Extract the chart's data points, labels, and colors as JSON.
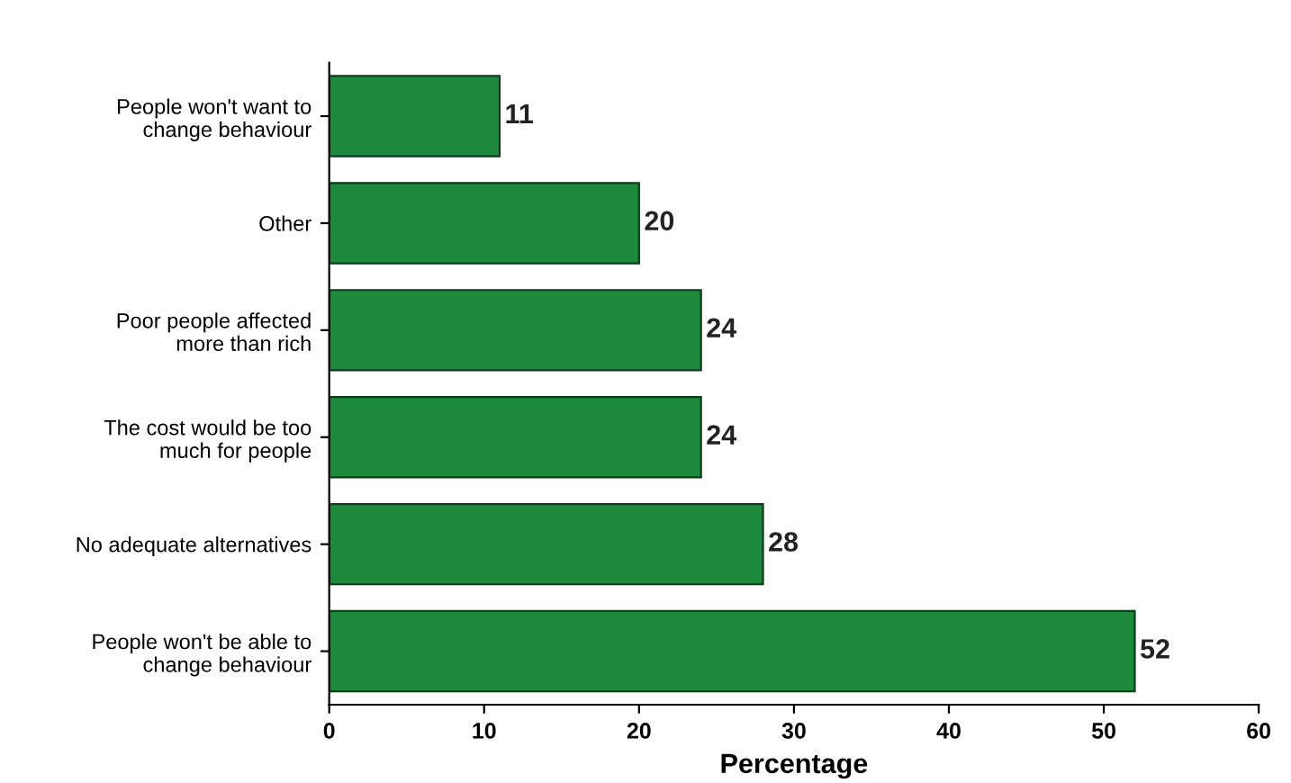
{
  "chart_data": {
    "type": "bar",
    "orientation": "horizontal",
    "categories": [
      "People won't want to\nchange behaviour",
      "Other",
      "Poor people affected\nmore than rich",
      "The cost would be too\nmuch for people",
      "No adequate alternatives",
      "People won't be able to\nchange behaviour"
    ],
    "values": [
      11,
      20,
      24,
      24,
      28,
      52
    ],
    "color": "#1e8a3e",
    "data_labels": true,
    "xlabel": "Percentage",
    "xlim": [
      0,
      60
    ],
    "xticks": [
      0,
      10,
      20,
      30,
      40,
      50,
      60
    ],
    "grid": false,
    "legend": false
  }
}
